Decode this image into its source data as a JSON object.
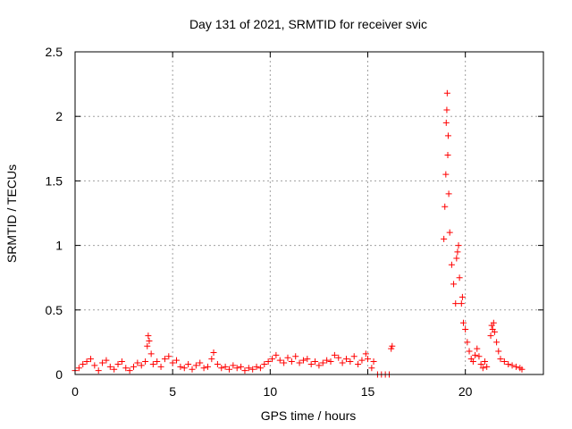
{
  "chart_data": {
    "type": "scatter",
    "title": "Day 131 of 2021, SRMTID for receiver svic",
    "xlabel": "GPS time / hours",
    "ylabel": "SRMTID / TECUs",
    "xlim": [
      0,
      24
    ],
    "ylim": [
      0,
      2.5
    ],
    "xticks": [
      0,
      5,
      10,
      15,
      20
    ],
    "yticks": [
      0,
      0.5,
      1,
      1.5,
      2,
      2.5
    ],
    "xtick_labels": [
      "0",
      "5",
      "10",
      "15",
      "20"
    ],
    "ytick_labels": [
      "0",
      "0.5",
      "1",
      "1.5",
      "2",
      "2.5"
    ],
    "grid": true,
    "marker": "+",
    "color": "#ff0000",
    "series": [
      {
        "name": "SRMTID",
        "points": [
          [
            0.0,
            0.03
          ],
          [
            0.2,
            0.05
          ],
          [
            0.4,
            0.08
          ],
          [
            0.6,
            0.1
          ],
          [
            0.8,
            0.12
          ],
          [
            1.0,
            0.07
          ],
          [
            1.2,
            0.03
          ],
          [
            1.4,
            0.09
          ],
          [
            1.6,
            0.11
          ],
          [
            1.8,
            0.06
          ],
          [
            2.0,
            0.04
          ],
          [
            2.2,
            0.08
          ],
          [
            2.4,
            0.1
          ],
          [
            2.6,
            0.05
          ],
          [
            2.8,
            0.03
          ],
          [
            3.0,
            0.06
          ],
          [
            3.2,
            0.09
          ],
          [
            3.4,
            0.07
          ],
          [
            3.6,
            0.1
          ],
          [
            3.7,
            0.22
          ],
          [
            3.75,
            0.3
          ],
          [
            3.8,
            0.26
          ],
          [
            3.9,
            0.16
          ],
          [
            4.0,
            0.08
          ],
          [
            4.2,
            0.1
          ],
          [
            4.4,
            0.06
          ],
          [
            4.6,
            0.12
          ],
          [
            4.8,
            0.14
          ],
          [
            5.0,
            0.09
          ],
          [
            5.2,
            0.11
          ],
          [
            5.4,
            0.06
          ],
          [
            5.6,
            0.05
          ],
          [
            5.8,
            0.08
          ],
          [
            6.0,
            0.04
          ],
          [
            6.2,
            0.07
          ],
          [
            6.4,
            0.09
          ],
          [
            6.6,
            0.05
          ],
          [
            6.8,
            0.06
          ],
          [
            7.0,
            0.12
          ],
          [
            7.1,
            0.17
          ],
          [
            7.3,
            0.08
          ],
          [
            7.5,
            0.05
          ],
          [
            7.7,
            0.06
          ],
          [
            7.9,
            0.04
          ],
          [
            8.1,
            0.07
          ],
          [
            8.3,
            0.05
          ],
          [
            8.5,
            0.06
          ],
          [
            8.7,
            0.03
          ],
          [
            8.9,
            0.05
          ],
          [
            9.1,
            0.04
          ],
          [
            9.3,
            0.06
          ],
          [
            9.5,
            0.05
          ],
          [
            9.7,
            0.08
          ],
          [
            9.9,
            0.1
          ],
          [
            10.1,
            0.12
          ],
          [
            10.3,
            0.15
          ],
          [
            10.5,
            0.11
          ],
          [
            10.7,
            0.09
          ],
          [
            10.9,
            0.13
          ],
          [
            11.1,
            0.1
          ],
          [
            11.3,
            0.14
          ],
          [
            11.5,
            0.09
          ],
          [
            11.7,
            0.11
          ],
          [
            11.9,
            0.12
          ],
          [
            12.1,
            0.08
          ],
          [
            12.3,
            0.1
          ],
          [
            12.5,
            0.07
          ],
          [
            12.7,
            0.09
          ],
          [
            12.9,
            0.11
          ],
          [
            13.1,
            0.1
          ],
          [
            13.3,
            0.15
          ],
          [
            13.5,
            0.13
          ],
          [
            13.7,
            0.09
          ],
          [
            13.9,
            0.12
          ],
          [
            14.1,
            0.1
          ],
          [
            14.3,
            0.14
          ],
          [
            14.5,
            0.08
          ],
          [
            14.7,
            0.11
          ],
          [
            14.9,
            0.16
          ],
          [
            15.0,
            0.12
          ],
          [
            15.2,
            0.05
          ],
          [
            15.3,
            0.1
          ],
          [
            15.5,
            0.0
          ],
          [
            15.7,
            0.0
          ],
          [
            15.9,
            0.0
          ],
          [
            16.1,
            0.0
          ],
          [
            16.2,
            0.2
          ],
          [
            16.25,
            0.22
          ],
          [
            18.9,
            1.05
          ],
          [
            18.95,
            1.3
          ],
          [
            19.0,
            1.55
          ],
          [
            19.02,
            1.95
          ],
          [
            19.05,
            2.05
          ],
          [
            19.07,
            2.18
          ],
          [
            19.1,
            1.7
          ],
          [
            19.12,
            1.85
          ],
          [
            19.15,
            1.4
          ],
          [
            19.2,
            1.1
          ],
          [
            19.3,
            0.85
          ],
          [
            19.4,
            0.7
          ],
          [
            19.5,
            0.55
          ],
          [
            19.55,
            0.9
          ],
          [
            19.6,
            0.95
          ],
          [
            19.65,
            1.0
          ],
          [
            19.7,
            0.75
          ],
          [
            19.8,
            0.55
          ],
          [
            19.85,
            0.6
          ],
          [
            19.9,
            0.4
          ],
          [
            20.0,
            0.35
          ],
          [
            20.1,
            0.25
          ],
          [
            20.2,
            0.18
          ],
          [
            20.3,
            0.12
          ],
          [
            20.4,
            0.1
          ],
          [
            20.5,
            0.15
          ],
          [
            20.6,
            0.2
          ],
          [
            20.7,
            0.14
          ],
          [
            20.8,
            0.08
          ],
          [
            20.9,
            0.05
          ],
          [
            21.0,
            0.1
          ],
          [
            21.1,
            0.06
          ],
          [
            21.3,
            0.3
          ],
          [
            21.35,
            0.38
          ],
          [
            21.4,
            0.35
          ],
          [
            21.45,
            0.4
          ],
          [
            21.5,
            0.33
          ],
          [
            21.6,
            0.25
          ],
          [
            21.7,
            0.18
          ],
          [
            21.8,
            0.12
          ],
          [
            22.0,
            0.1
          ],
          [
            22.2,
            0.08
          ],
          [
            22.4,
            0.07
          ],
          [
            22.6,
            0.06
          ],
          [
            22.8,
            0.05
          ],
          [
            22.9,
            0.04
          ]
        ]
      }
    ]
  }
}
